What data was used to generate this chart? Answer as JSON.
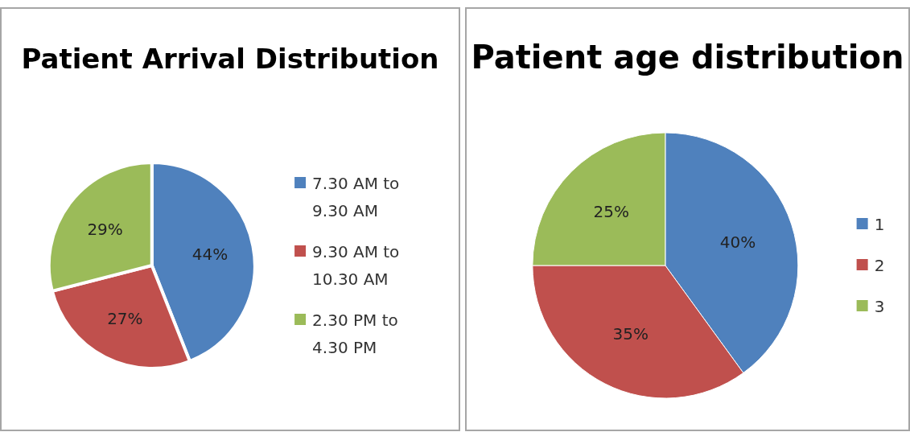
{
  "chart_data": [
    {
      "type": "pie",
      "title": "Patient Arrival Distribution",
      "categories": [
        "7.30 AM to 9.30 AM",
        "9.30 AM to 10.30 AM",
        "2.30 PM to 4.30 PM"
      ],
      "values": [
        44,
        27,
        29
      ],
      "colors": [
        "#4f81bd",
        "#c0504d",
        "#9bbb59"
      ],
      "value_labels": [
        "44%",
        "27%",
        "29%"
      ],
      "legend": "right"
    },
    {
      "type": "pie",
      "title": "Patient age distribution",
      "categories": [
        "1",
        "2",
        "3"
      ],
      "values": [
        40,
        35,
        25
      ],
      "colors": [
        "#4f81bd",
        "#c0504d",
        "#9bbb59"
      ],
      "value_labels": [
        "40%",
        "35%",
        "25%"
      ],
      "legend": "right"
    }
  ]
}
